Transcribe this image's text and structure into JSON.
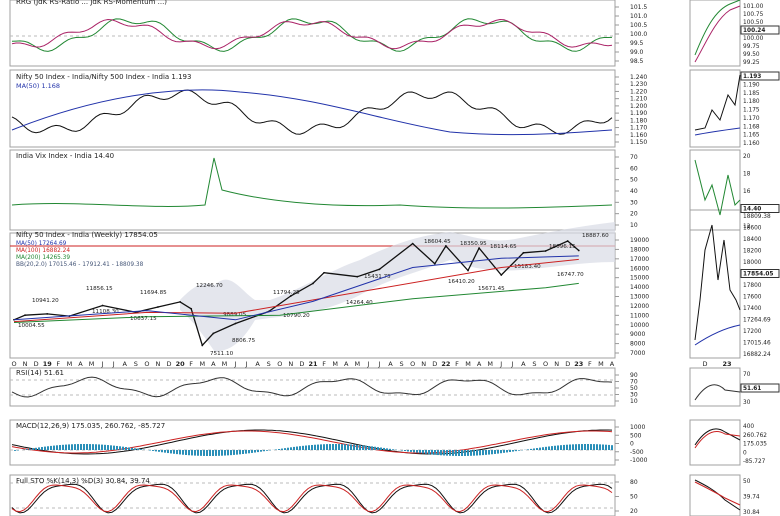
{
  "panels": {
    "rrg": {
      "label": "RRG (JdK RS-Ratio ... JdK RS-Momentum ...)",
      "ticks": [
        "101.5",
        "101.0",
        "100.5",
        "100.0",
        "99.5",
        "99.0",
        "98.5"
      ],
      "side_ticks": [
        "101.00",
        "100.75",
        "100.50",
        "100.24",
        "100.00",
        "99.75",
        "99.50",
        "99.25"
      ]
    },
    "ratio": {
      "label": "Nifty 50 Index - India/Nifty 500 Index - India 1.193",
      "ma_label": "MA(50) 1.168",
      "ticks": [
        "1.240",
        "1.230",
        "1.220",
        "1.210",
        "1.200",
        "1.190",
        "1.180",
        "1.170",
        "1.160",
        "1.150"
      ],
      "side_ticks": [
        "1.193",
        "1.190",
        "1.185",
        "1.180",
        "1.175",
        "1.170",
        "1.168",
        "1.165",
        "1.160"
      ]
    },
    "vix": {
      "label": "India Vix Index - India 14.40",
      "ticks": [
        "70",
        "60",
        "50",
        "40",
        "30",
        "20",
        "10"
      ],
      "side_ticks": [
        "20",
        "18",
        "16",
        "14.40",
        "12"
      ]
    },
    "price": {
      "label": "Nifty 50 Index - India (Weekly) 17854.05",
      "legend": [
        "MA(50) 17264.69",
        "MA(100) 16882.24",
        "MA(200) 14265.39",
        "BB(20,2.0) 17015.46 - 17912.41 - 18809.38"
      ],
      "ticks": [
        "19000",
        "18000",
        "17000",
        "16000",
        "15000",
        "14000",
        "13000",
        "12000",
        "11000",
        "10000",
        "9000",
        "8000",
        "7000"
      ],
      "side_ticks": [
        "18809.38",
        "18600",
        "18400",
        "18200",
        "18000",
        "17854.05",
        "17800",
        "17600",
        "17400",
        "17264.69",
        "17200",
        "17015.46",
        "16882.24"
      ],
      "annotations": [
        "10941.20",
        "10004.55",
        "11856.15",
        "11108.30",
        "11694.85",
        "10637.15",
        "12246.70",
        "9889.05",
        "8806.75",
        "7511.10",
        "11794.25",
        "10790.20",
        "15431.75",
        "14264.40",
        "18604.45",
        "16410.20",
        "18350.95",
        "15671.45",
        "18114.65",
        "15183.40",
        "18096.15",
        "16747.70",
        "18887.60"
      ]
    },
    "rsi": {
      "label": "RSI(14) 51.61",
      "ticks": [
        "90",
        "70",
        "50",
        "30",
        "10"
      ],
      "side_ticks": [
        "70",
        "51.61",
        "30"
      ]
    },
    "macd": {
      "label": "MACD(12,26,9) 175.035, 260.762, -85.727",
      "ticks": [
        "1000",
        "500",
        "0",
        "-500",
        "-1000"
      ],
      "side_ticks": [
        "400",
        "260.762",
        "175.035",
        "0",
        "-85.727"
      ]
    },
    "sto": {
      "label": "Full STO %K(14,3) %D(3) 30.84, 39.74",
      "ticks": [
        "80",
        "50",
        "20"
      ],
      "side_ticks": [
        "50",
        "39.74",
        "30.84"
      ]
    }
  },
  "x_axis": {
    "labels": [
      "O",
      "N",
      "D",
      "19",
      "F",
      "M",
      "A",
      "M",
      "J",
      "J",
      "A",
      "S",
      "O",
      "N",
      "D",
      "20",
      "F",
      "M",
      "A",
      "M",
      "J",
      "J",
      "A",
      "S",
      "O",
      "N",
      "D",
      "21",
      "F",
      "M",
      "A",
      "M",
      "J",
      "J",
      "A",
      "S",
      "O",
      "N",
      "D",
      "22",
      "F",
      "M",
      "A",
      "M",
      "J",
      "J",
      "A",
      "S",
      "O",
      "N",
      "D",
      "23",
      "F",
      "M",
      "A"
    ],
    "bold": [
      "19",
      "20",
      "21",
      "22",
      "23"
    ],
    "side_labels": [
      "D",
      "23"
    ]
  },
  "chart_data": {
    "type": "line",
    "title": "Nifty 50 Index - India (Weekly) 17854.05",
    "ylim": [
      7000,
      19000
    ],
    "series": [
      {
        "name": "Nifty 50 Index - India (Weekly)",
        "x": [
          "2018-10",
          "2018-11",
          "2019-01",
          "2019-03",
          "2019-06",
          "2019-09",
          "2019-11",
          "2020-01",
          "2020-02",
          "2020-03",
          "2020-04",
          "2020-06",
          "2020-09",
          "2020-11",
          "2021-01",
          "2021-02",
          "2021-05",
          "2021-07",
          "2021-10",
          "2021-12",
          "2022-01",
          "2022-03",
          "2022-04",
          "2022-06",
          "2022-08",
          "2022-10",
          "2022-12",
          "2023-01"
        ],
        "values": [
          10300,
          10800,
          10941,
          10700,
          11856,
          11108,
          11694,
          12246,
          11500,
          7511,
          8806,
          9889,
          11200,
          12900,
          14264,
          15431,
          15000,
          15800,
          18604,
          16410,
          18350,
          15671,
          18114,
          15183,
          17600,
          17800,
          18887,
          17854
        ]
      },
      {
        "name": "MA(200)",
        "x": [
          "2018-10",
          "2019-10",
          "2020-10",
          "2021-10",
          "2022-10",
          "2023-01"
        ],
        "values": [
          10004,
          10637,
          10790,
          12600,
          13800,
          14265
        ]
      },
      {
        "name": "MA(100)",
        "x": [
          "2018-10",
          "2019-10",
          "2020-06",
          "2021-06",
          "2022-06",
          "2023-01"
        ],
        "values": [
          10100,
          11100,
          11000,
          13500,
          16000,
          16882
        ]
      },
      {
        "name": "MA(50)",
        "x": [
          "2018-10",
          "2019-10",
          "2020-06",
          "2021-01",
          "2021-10",
          "2022-06",
          "2023-01"
        ],
        "values": [
          10300,
          11300,
          10300,
          12300,
          16000,
          17000,
          17265
        ]
      }
    ],
    "legend": [
      "MA(50) 17264.69",
      "MA(100) 16882.24",
      "MA(200) 14265.39",
      "BB(20,2.0) 17015.46 - 17912.41 - 18809.38"
    ]
  }
}
